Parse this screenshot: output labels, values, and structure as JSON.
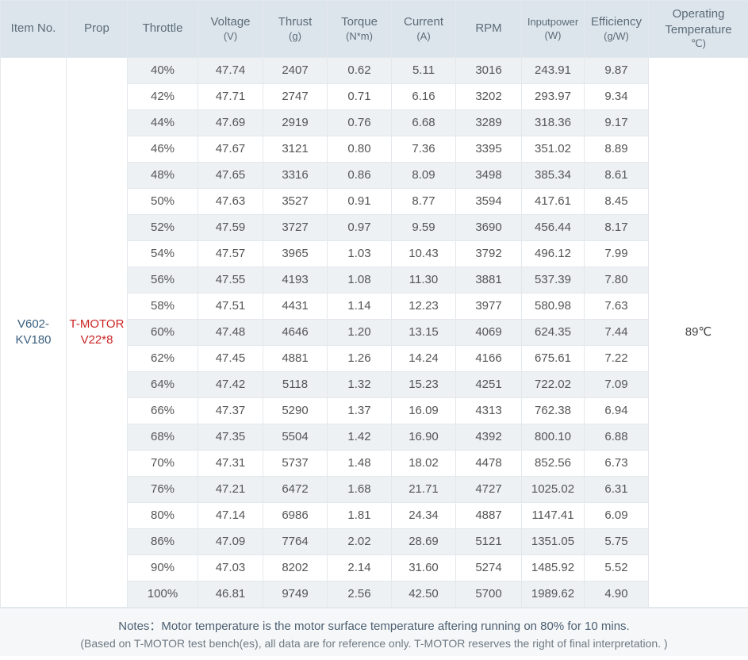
{
  "headers": {
    "item_no": "Item No.",
    "prop": "Prop",
    "throttle": "Throttle",
    "voltage": [
      "Voltage",
      "(V)"
    ],
    "thrust": [
      "Thrust",
      "(g)"
    ],
    "torque": [
      "Torque",
      "(N*m)"
    ],
    "current": [
      "Current",
      "(A)"
    ],
    "rpm": "RPM",
    "inputpower": [
      "Inputpower",
      "(W)"
    ],
    "efficiency": [
      "Efficiency",
      "(g/W)"
    ],
    "temperature": [
      "Operating",
      "Temperature",
      "℃)"
    ]
  },
  "item": [
    "V602-",
    "KV180"
  ],
  "prop": [
    "T-MOTOR",
    "V22*8"
  ],
  "operating_temperature": "89℃",
  "rows": [
    [
      "40%",
      "47.74",
      "2407",
      "0.62",
      "5.11",
      "3016",
      "243.91",
      "9.87"
    ],
    [
      "42%",
      "47.71",
      "2747",
      "0.71",
      "6.16",
      "3202",
      "293.97",
      "9.34"
    ],
    [
      "44%",
      "47.69",
      "2919",
      "0.76",
      "6.68",
      "3289",
      "318.36",
      "9.17"
    ],
    [
      "46%",
      "47.67",
      "3121",
      "0.80",
      "7.36",
      "3395",
      "351.02",
      "8.89"
    ],
    [
      "48%",
      "47.65",
      "3316",
      "0.86",
      "8.09",
      "3498",
      "385.34",
      "8.61"
    ],
    [
      "50%",
      "47.63",
      "3527",
      "0.91",
      "8.77",
      "3594",
      "417.61",
      "8.45"
    ],
    [
      "52%",
      "47.59",
      "3727",
      "0.97",
      "9.59",
      "3690",
      "456.44",
      "8.17"
    ],
    [
      "54%",
      "47.57",
      "3965",
      "1.03",
      "10.43",
      "3792",
      "496.12",
      "7.99"
    ],
    [
      "56%",
      "47.55",
      "4193",
      "1.08",
      "11.30",
      "3881",
      "537.39",
      "7.80"
    ],
    [
      "58%",
      "47.51",
      "4431",
      "1.14",
      "12.23",
      "3977",
      "580.98",
      "7.63"
    ],
    [
      "60%",
      "47.48",
      "4646",
      "1.20",
      "13.15",
      "4069",
      "624.35",
      "7.44"
    ],
    [
      "62%",
      "47.45",
      "4881",
      "1.26",
      "14.24",
      "4166",
      "675.61",
      "7.22"
    ],
    [
      "64%",
      "47.42",
      "5118",
      "1.32",
      "15.23",
      "4251",
      "722.02",
      "7.09"
    ],
    [
      "66%",
      "47.37",
      "5290",
      "1.37",
      "16.09",
      "4313",
      "762.38",
      "6.94"
    ],
    [
      "68%",
      "47.35",
      "5504",
      "1.42",
      "16.90",
      "4392",
      "800.10",
      "6.88"
    ],
    [
      "70%",
      "47.31",
      "5737",
      "1.48",
      "18.02",
      "4478",
      "852.56",
      "6.73"
    ],
    [
      "76%",
      "47.21",
      "6472",
      "1.68",
      "21.71",
      "4727",
      "1025.02",
      "6.31"
    ],
    [
      "80%",
      "47.14",
      "6986",
      "1.81",
      "24.34",
      "4887",
      "1147.41",
      "6.09"
    ],
    [
      "86%",
      "47.09",
      "7764",
      "2.02",
      "28.69",
      "5121",
      "1351.05",
      "5.75"
    ],
    [
      "90%",
      "47.03",
      "8202",
      "2.14",
      "31.60",
      "5274",
      "1485.92",
      "5.52"
    ],
    [
      "100%",
      "46.81",
      "9749",
      "2.56",
      "42.50",
      "5700",
      "1989.62",
      "4.90"
    ]
  ],
  "notes": {
    "line1": "Notes：Motor temperature is the motor surface temperature aftering running on 80% for 10 mins.",
    "line2": "(Based on T-MOTOR test bench(es), all data are for reference only. T-MOTOR reserves the right of final interpretation. )"
  }
}
